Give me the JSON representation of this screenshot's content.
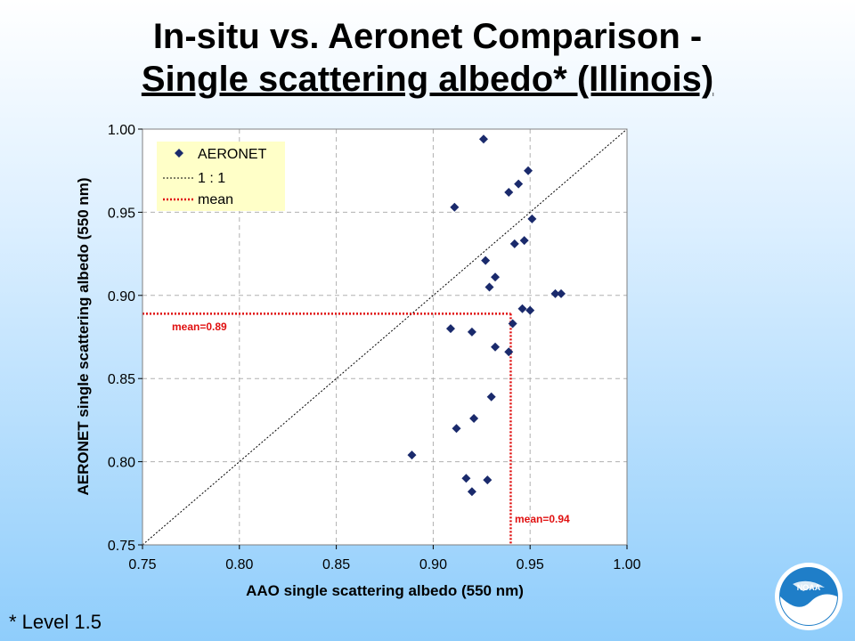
{
  "slide": {
    "title_line1": "In-situ vs. Aeronet Comparison -",
    "title_line2": "Single scattering albedo* (Illinois)",
    "footnote": "* Level 1.5",
    "logo_text": "NOAA"
  },
  "chart_data": {
    "type": "scatter",
    "xlabel": "AAO single scattering albedo (550 nm)",
    "ylabel": "AERONET single scattering albedo (550 nm)",
    "xlim": [
      0.75,
      1.0
    ],
    "ylim": [
      0.75,
      1.0
    ],
    "x_ticks": [
      "0.75",
      "0.80",
      "0.85",
      "0.90",
      "0.95",
      "1.00"
    ],
    "y_ticks": [
      "0.75",
      "0.80",
      "0.85",
      "0.90",
      "0.95",
      "1.00"
    ],
    "grid": true,
    "legend": {
      "placement": "top-left",
      "entries": [
        "AERONET",
        "1 : 1",
        "mean"
      ]
    },
    "series": [
      {
        "name": "AERONET",
        "color": "#1a2a6c",
        "marker": "diamond",
        "points": [
          [
            0.926,
            0.994
          ],
          [
            0.949,
            0.975
          ],
          [
            0.944,
            0.967
          ],
          [
            0.939,
            0.962
          ],
          [
            0.911,
            0.953
          ],
          [
            0.951,
            0.946
          ],
          [
            0.947,
            0.933
          ],
          [
            0.942,
            0.931
          ],
          [
            0.927,
            0.921
          ],
          [
            0.932,
            0.911
          ],
          [
            0.929,
            0.905
          ],
          [
            0.963,
            0.901
          ],
          [
            0.966,
            0.901
          ],
          [
            0.946,
            0.892
          ],
          [
            0.95,
            0.891
          ],
          [
            0.941,
            0.883
          ],
          [
            0.909,
            0.88
          ],
          [
            0.92,
            0.878
          ],
          [
            0.932,
            0.869
          ],
          [
            0.939,
            0.866
          ],
          [
            0.93,
            0.839
          ],
          [
            0.921,
            0.826
          ],
          [
            0.912,
            0.82
          ],
          [
            0.889,
            0.804
          ],
          [
            0.917,
            0.79
          ],
          [
            0.928,
            0.789
          ],
          [
            0.92,
            0.782
          ]
        ]
      }
    ],
    "reference_line": {
      "name": "1 : 1",
      "color": "#000000"
    },
    "mean": {
      "name": "mean",
      "color": "#e01010",
      "x": 0.94,
      "y": 0.889,
      "x_label": "mean=0.94",
      "y_label": "mean=0.89"
    }
  }
}
